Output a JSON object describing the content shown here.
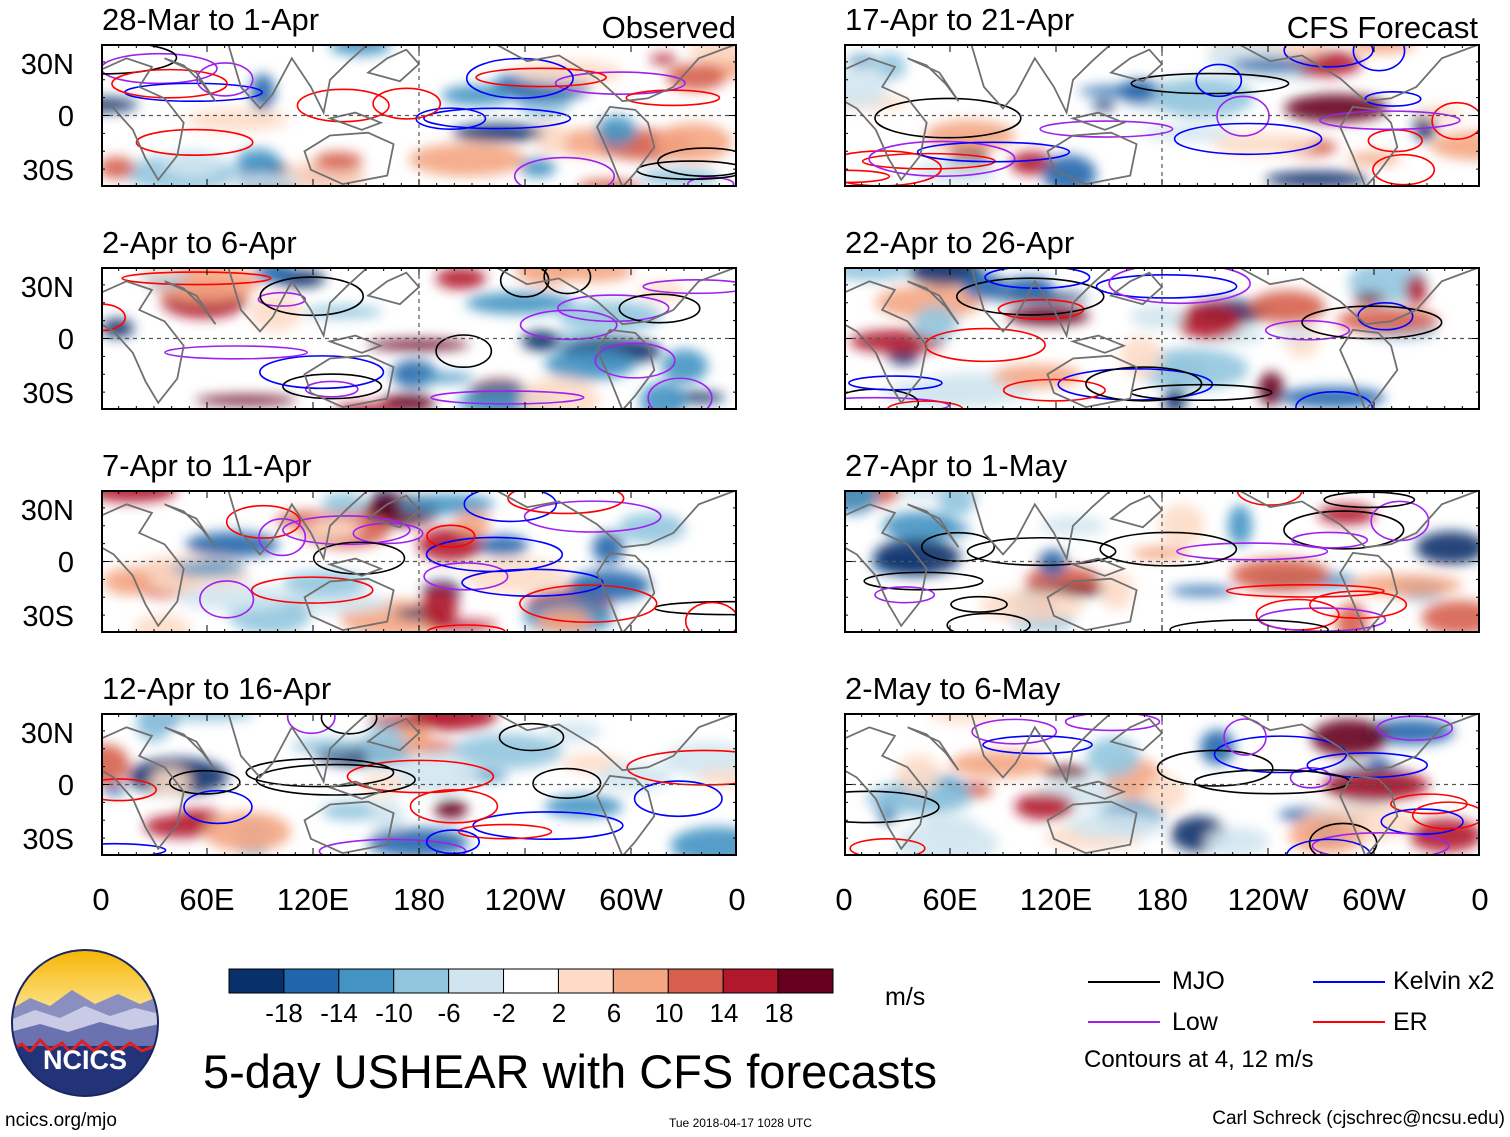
{
  "panels": [
    {
      "title": "28-Mar to 1-Apr",
      "tag": "Observed",
      "seed": 1
    },
    {
      "title": "17-Apr to 21-Apr",
      "tag": "CFS Forecast",
      "seed": 2
    },
    {
      "title": "2-Apr to 6-Apr",
      "tag": "",
      "seed": 3
    },
    {
      "title": "22-Apr to 26-Apr",
      "tag": "",
      "seed": 4
    },
    {
      "title": "7-Apr to 11-Apr",
      "tag": "",
      "seed": 5
    },
    {
      "title": "27-Apr to 1-May",
      "tag": "",
      "seed": 6
    },
    {
      "title": "12-Apr to 16-Apr",
      "tag": "",
      "seed": 7
    },
    {
      "title": "2-May to 6-May",
      "tag": "",
      "seed": 8
    }
  ],
  "lat_labels": [
    "30N",
    "0",
    "30S"
  ],
  "lon_labels": [
    "0",
    "60E",
    "120E",
    "180",
    "120W",
    "60W",
    "0"
  ],
  "colorbar": {
    "colors": [
      "#08306b",
      "#2166ac",
      "#4393c3",
      "#92c5de",
      "#d1e5f0",
      "#ffffff",
      "#fddbc7",
      "#f4a582",
      "#d6604d",
      "#b2182b",
      "#67001f"
    ],
    "labels": [
      "-18",
      "-14",
      "-10",
      "-6",
      "-2",
      "2",
      "6",
      "10",
      "14",
      "18"
    ],
    "units": "m/s"
  },
  "legend": {
    "items": [
      {
        "label": "MJO",
        "color": "#000000"
      },
      {
        "label": "Kelvin x2",
        "color": "#0000ff"
      },
      {
        "label": "Low",
        "color": "#a020f0"
      },
      {
        "label": "ER",
        "color": "#ff0000"
      }
    ],
    "note": "Contours at 4, 12 m/s"
  },
  "logo": {
    "text": "NCICS"
  },
  "title": "5-day USHEAR with CFS forecasts",
  "footer": {
    "left": "ncics.org/mjo",
    "center": "Tue 2018-04-17 1028 UTC",
    "right": "Carl Schreck (cjschrec@ncsu.edu)"
  }
}
